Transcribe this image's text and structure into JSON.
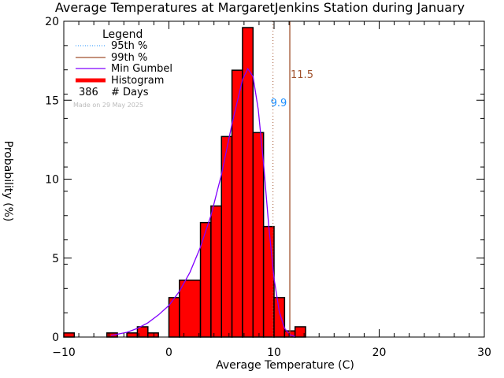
{
  "chart_data": {
    "type": "bar",
    "title": "Average Temperatures at MargaretJenkins Station during January",
    "xlabel": "Average Temperature (C)",
    "ylabel": "Probability (%)",
    "xlim": [
      -10,
      30
    ],
    "ylim": [
      0,
      20
    ],
    "xticks": [
      "-10",
      "0",
      "10",
      "20",
      "30"
    ],
    "yticks": [
      "0",
      "5",
      "10",
      "15",
      "20"
    ],
    "grid": false,
    "legend_position": "upper-left",
    "legend": {
      "title": "Legend",
      "entries": [
        {
          "label": "95th %",
          "style": "dotted",
          "color": "#1e90ff"
        },
        {
          "label": "99th %",
          "style": "solid",
          "color": "#a0522d"
        },
        {
          "label": "Min Gumbel",
          "style": "solid",
          "color": "#8000ff"
        },
        {
          "label": "Histogram",
          "style": "thick",
          "color": "#ff0000"
        }
      ],
      "days_count": "386",
      "days_label": "# Days",
      "made_on": "Made on 29 May 2025"
    },
    "percentile_95": {
      "value": 9.9,
      "label": "9.9",
      "color": "#1e90ff"
    },
    "percentile_99": {
      "value": 11.5,
      "label": "11.5",
      "color": "#a0522d"
    },
    "histogram": {
      "bin_edges": [
        -10,
        -9,
        -6,
        -5,
        -4,
        -3,
        -2,
        0,
        1,
        3,
        4,
        5,
        6,
        7,
        8,
        9,
        10,
        11,
        12,
        13
      ],
      "bins": [
        {
          "x0": -10.0,
          "x1": -9.0,
          "value": 0.26
        },
        {
          "x0": -5.9,
          "x1": -4.9,
          "value": 0.26
        },
        {
          "x0": -4.0,
          "x1": -3.0,
          "value": 0.26
        },
        {
          "x0": -3.0,
          "x1": -2.0,
          "value": 0.65
        },
        {
          "x0": -2.0,
          "x1": -1.0,
          "value": 0.26
        },
        {
          "x0": 0.0,
          "x1": 1.0,
          "value": 2.5
        },
        {
          "x0": 1.0,
          "x1": 3.0,
          "value": 3.6
        },
        {
          "x0": 3.0,
          "x1": 4.0,
          "value": 7.25
        },
        {
          "x0": 4.0,
          "x1": 5.0,
          "value": 8.3
        },
        {
          "x0": 5.0,
          "x1": 6.0,
          "value": 12.7
        },
        {
          "x0": 6.0,
          "x1": 7.0,
          "value": 16.9
        },
        {
          "x0": 7.0,
          "x1": 8.0,
          "value": 19.6
        },
        {
          "x0": 8.0,
          "x1": 9.0,
          "value": 12.95
        },
        {
          "x0": 9.0,
          "x1": 10.0,
          "value": 7.0
        },
        {
          "x0": 10.0,
          "x1": 11.0,
          "value": 2.5
        },
        {
          "x0": 11.0,
          "x1": 12.0,
          "value": 0.39
        },
        {
          "x0": 12.0,
          "x1": 13.0,
          "value": 0.65
        }
      ]
    },
    "gumbel_curve": {
      "x": [
        -5.5,
        -4,
        -3,
        -2,
        -1,
        0,
        1,
        2,
        3,
        4,
        5,
        6,
        7,
        7.5,
        8,
        8.5,
        9,
        9.5,
        10,
        10.5,
        11,
        11.5,
        12
      ],
      "y": [
        0.1,
        0.3,
        0.55,
        0.9,
        1.4,
        2.0,
        2.9,
        4.1,
        5.7,
        7.7,
        10.3,
        13.5,
        16.3,
        17.0,
        16.5,
        14.4,
        11.0,
        7.0,
        3.7,
        1.6,
        0.55,
        0.15,
        0.03
      ]
    }
  }
}
